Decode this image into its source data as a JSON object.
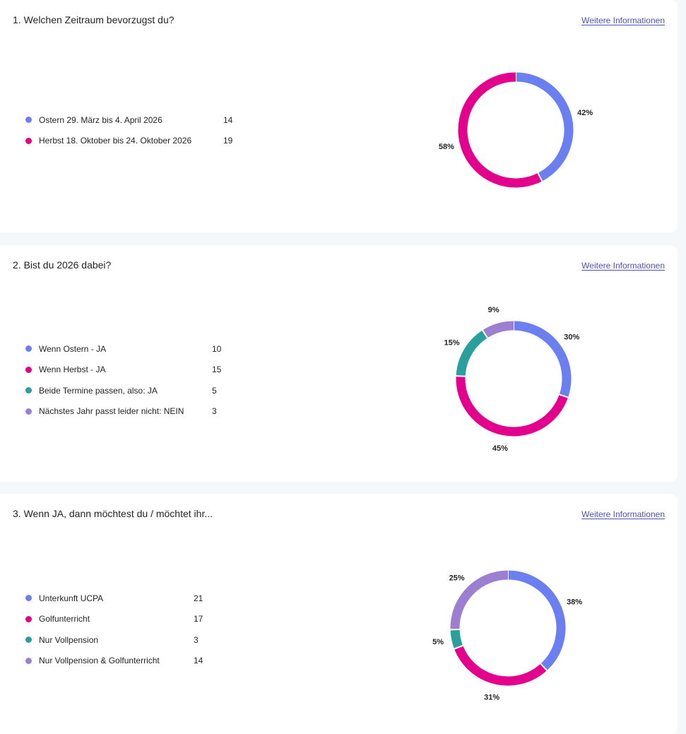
{
  "colors": {
    "blue": "#6b7ff0",
    "magenta": "#e3008c",
    "teal": "#2b9e9e",
    "purple": "#9c7fd0"
  },
  "link_label": "Weitere Informationen",
  "chart_data": [
    {
      "type": "pie",
      "title": "1. Welchen Zeitraum bevorzugst du?",
      "categories": [
        "Ostern 29. März bis 4. April 2026",
        "Herbst 18. Oktober bis 24. Oktober 2026"
      ],
      "values": [
        14,
        19
      ],
      "percent_labels": [
        "42%",
        "58%"
      ],
      "colors": [
        "#6b7ff0",
        "#e3008c"
      ],
      "legend": "left"
    },
    {
      "type": "pie",
      "title": "2. Bist du 2026 dabei?",
      "categories": [
        "Wenn Ostern - JA",
        "Wenn Herbst - JA",
        "Beide Termine passen, also: JA",
        "Nächstes Jahr passt leider nicht: NEIN"
      ],
      "values": [
        10,
        15,
        5,
        3
      ],
      "percent_labels": [
        "30%",
        "45%",
        "15%",
        "9%"
      ],
      "colors": [
        "#6b7ff0",
        "#e3008c",
        "#2b9e9e",
        "#9c7fd0"
      ],
      "legend": "left"
    },
    {
      "type": "pie",
      "title": "3. Wenn JA, dann möchtest du / möchtet ihr...",
      "categories": [
        "Unterkunft UCPA",
        "Golfunterricht",
        "Nur Vollpension",
        "Nur Vollpension & Golfunterricht"
      ],
      "values": [
        21,
        17,
        3,
        14
      ],
      "percent_labels": [
        "38%",
        "31%",
        "5%",
        "25%"
      ],
      "colors": [
        "#6b7ff0",
        "#e3008c",
        "#2b9e9e",
        "#9c7fd0"
      ],
      "legend": "left"
    }
  ]
}
